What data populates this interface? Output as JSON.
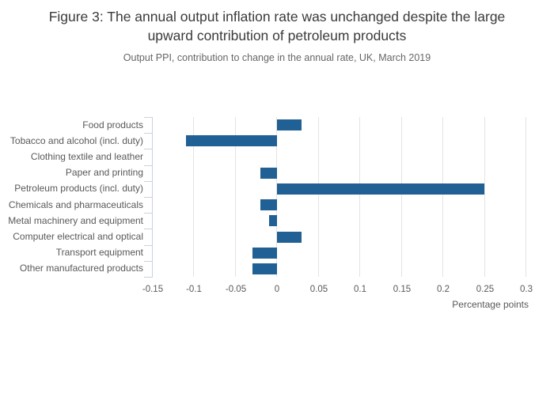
{
  "header": {
    "title_line1": "Figure 3: The annual output inflation rate was unchanged despite the large",
    "title_line2": "upward contribution of petroleum products",
    "subtitle": "Output PPI, contribution to change in the annual rate, UK, March 2019"
  },
  "chart_data": {
    "type": "bar",
    "orientation": "horizontal",
    "title": "Figure 3: The annual output inflation rate was unchanged despite the large upward contribution of petroleum products",
    "subtitle": "Output PPI, contribution to change in the annual rate, UK, March 2019",
    "categories": [
      "Food products",
      "Tobacco and alcohol (incl. duty)",
      "Clothing textile and leather",
      "Paper and printing",
      "Petroleum products (incl. duty)",
      "Chemicals and pharmaceuticals",
      "Metal machinery and equipment",
      "Computer electrical and optical",
      "Transport equipment",
      "Other manufactured products"
    ],
    "values": [
      0.03,
      -0.11,
      0,
      -0.02,
      0.25,
      -0.02,
      -0.01,
      0.03,
      -0.03,
      -0.03
    ],
    "xlabel": "Percentage points",
    "xlim": [
      -0.15,
      0.3
    ],
    "xticks": [
      -0.15,
      -0.1,
      -0.05,
      0,
      0.05,
      0.1,
      0.15,
      0.2,
      0.25,
      0.3
    ],
    "xtick_labels": [
      "-0.15",
      "-0.1",
      "-0.05",
      "0",
      "0.05",
      "0.1",
      "0.15",
      "0.2",
      "0.25",
      "0.3"
    ],
    "grid": true,
    "legend": "none",
    "colors": {
      "bar": "#206095",
      "axis": "#c9d3e0",
      "grid": "#e3e3e3",
      "title_text": "#3a3a3a",
      "subtitle_text": "#666666",
      "label_text": "#595959"
    }
  }
}
